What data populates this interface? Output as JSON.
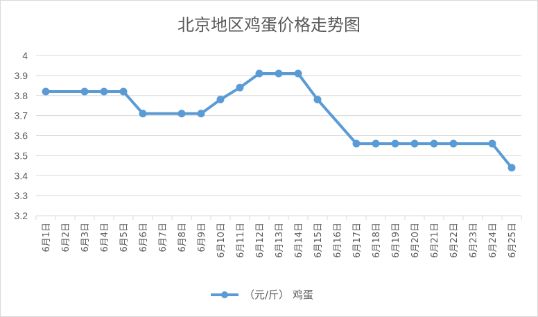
{
  "chart_data": {
    "type": "line",
    "title": "北京地区鸡蛋价格走势图",
    "xlabel": "",
    "ylabel": "",
    "categories": [
      "6月1日",
      "6月2日",
      "6月3日",
      "6月4日",
      "6月5日",
      "6月6日",
      "6月7日",
      "6月8日",
      "6月9日",
      "6月10日",
      "6月11日",
      "6月12日",
      "6月13日",
      "6月14日",
      "6月15日",
      "6月16日",
      "6月17日",
      "6月18日",
      "6月19日",
      "6月20日",
      "6月21日",
      "6月22日",
      "6月23日",
      "6月24日",
      "6月25日"
    ],
    "series": [
      {
        "name": "（元/斤） 鸡蛋",
        "color": "#5b9bd5",
        "values": [
          3.82,
          null,
          3.82,
          3.82,
          3.82,
          3.71,
          null,
          3.71,
          3.71,
          3.78,
          3.84,
          3.91,
          3.91,
          3.91,
          3.78,
          null,
          3.56,
          3.56,
          3.56,
          3.56,
          3.56,
          3.56,
          null,
          3.56,
          3.44
        ]
      }
    ],
    "ylim": [
      3.2,
      4
    ],
    "yticks": [
      "3.2",
      "3.3",
      "3.4",
      "3.5",
      "3.6",
      "3.7",
      "3.8",
      "3.9",
      "4"
    ],
    "grid": true,
    "legend": "bottom"
  }
}
